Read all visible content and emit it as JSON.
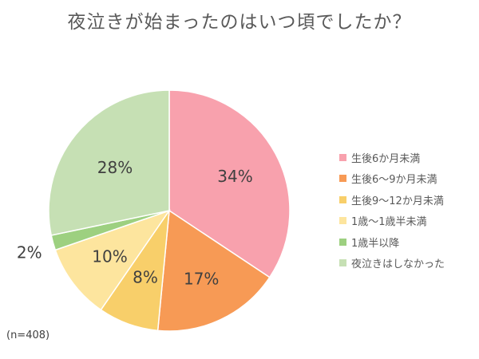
{
  "chart_data": {
    "type": "pie",
    "title": "夜泣きが始まったのはいつ頃でしたか？",
    "note": "(n=408)",
    "categories": [
      "生後6か月未満",
      "生後6〜9か月未満",
      "生後9〜12か月未満",
      "1歳〜1歳半未満",
      "1歳半以降",
      "夜泣きはしなかった"
    ],
    "values": [
      34,
      17,
      8,
      10,
      2,
      28
    ],
    "labels": [
      "34%",
      "17%",
      "8%",
      "10%",
      "2%",
      "28%"
    ],
    "colors": [
      "#f8a1ad",
      "#f79a55",
      "#f8cf6a",
      "#fde59e",
      "#9dd080",
      "#c6e0b4"
    ],
    "legend_position": "right"
  }
}
